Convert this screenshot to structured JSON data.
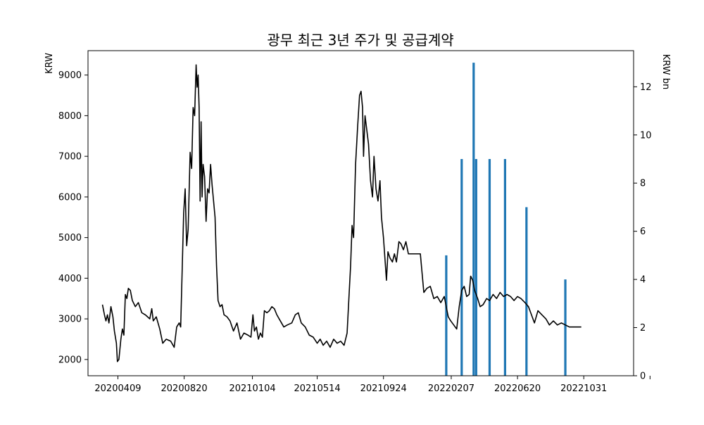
{
  "chart_data": {
    "type": "line+bar",
    "title": "광무 최근 3년 주가 및 공급계약",
    "ylabel_left": "KRW",
    "ylabel_right": "KRW bn",
    "x_tick_labels": [
      "20200409",
      "20200820",
      "20210104",
      "20210514",
      "20210924",
      "20220207",
      "20220620",
      "20221031"
    ],
    "y_left_ticks": [
      "2000",
      "3000",
      "4000",
      "5000",
      "6000",
      "7000",
      "8000",
      "9000"
    ],
    "y_right_ticks": [
      "0",
      "2",
      "4",
      "6",
      "8",
      "10",
      "12"
    ],
    "x_range": [
      "2020-02-09",
      "2023-02-08"
    ],
    "y_left_range": [
      1600,
      9600
    ],
    "y_right_range": [
      0,
      13.5
    ],
    "grid": false,
    "colors": {
      "line": "#000000",
      "bar": "#1f77b4"
    },
    "price_series": {
      "name": "",
      "points": [
        [
          "2020-03-09",
          3350
        ],
        [
          "2020-03-13",
          3100
        ],
        [
          "2020-03-16",
          2950
        ],
        [
          "2020-03-19",
          3100
        ],
        [
          "2020-03-22",
          2900
        ],
        [
          "2020-03-26",
          3300
        ],
        [
          "2020-03-30",
          3050
        ],
        [
          "2020-04-02",
          2700
        ],
        [
          "2020-04-06",
          2400
        ],
        [
          "2020-04-08",
          1950
        ],
        [
          "2020-04-11",
          2000
        ],
        [
          "2020-04-15",
          2500
        ],
        [
          "2020-04-18",
          2750
        ],
        [
          "2020-04-21",
          2600
        ],
        [
          "2020-04-24",
          3600
        ],
        [
          "2020-04-27",
          3500
        ],
        [
          "2020-04-30",
          3750
        ],
        [
          "2020-05-04",
          3700
        ],
        [
          "2020-05-08",
          3450
        ],
        [
          "2020-05-14",
          3300
        ],
        [
          "2020-05-20",
          3400
        ],
        [
          "2020-05-27",
          3150
        ],
        [
          "2020-06-03",
          3100
        ],
        [
          "2020-06-12",
          3000
        ],
        [
          "2020-06-16",
          3250
        ],
        [
          "2020-06-19",
          2950
        ],
        [
          "2020-06-25",
          3050
        ],
        [
          "2020-07-02",
          2750
        ],
        [
          "2020-07-08",
          2400
        ],
        [
          "2020-07-15",
          2500
        ],
        [
          "2020-07-24",
          2450
        ],
        [
          "2020-07-31",
          2300
        ],
        [
          "2020-08-05",
          2800
        ],
        [
          "2020-08-10",
          2900
        ],
        [
          "2020-08-13",
          2800
        ],
        [
          "2020-08-16",
          4200
        ],
        [
          "2020-08-19",
          5600
        ],
        [
          "2020-08-22",
          6200
        ],
        [
          "2020-08-25",
          4800
        ],
        [
          "2020-08-28",
          5200
        ],
        [
          "2020-09-01",
          7100
        ],
        [
          "2020-09-04",
          6700
        ],
        [
          "2020-09-07",
          8200
        ],
        [
          "2020-09-10",
          8000
        ],
        [
          "2020-09-13",
          9250
        ],
        [
          "2020-09-15",
          8700
        ],
        [
          "2020-09-17",
          9000
        ],
        [
          "2020-09-19",
          8200
        ],
        [
          "2020-09-21",
          5900
        ],
        [
          "2020-09-23",
          7850
        ],
        [
          "2020-09-25",
          6000
        ],
        [
          "2020-09-27",
          6800
        ],
        [
          "2020-09-30",
          6500
        ],
        [
          "2020-10-03",
          5400
        ],
        [
          "2020-10-06",
          6200
        ],
        [
          "2020-10-09",
          6100
        ],
        [
          "2020-10-12",
          6800
        ],
        [
          "2020-10-15",
          6300
        ],
        [
          "2020-10-18",
          5900
        ],
        [
          "2020-10-21",
          5500
        ],
        [
          "2020-10-24",
          4300
        ],
        [
          "2020-10-27",
          3450
        ],
        [
          "2020-10-31",
          3300
        ],
        [
          "2020-11-04",
          3350
        ],
        [
          "2020-11-08",
          3100
        ],
        [
          "2020-11-14",
          3050
        ],
        [
          "2020-11-20",
          2950
        ],
        [
          "2020-11-27",
          2700
        ],
        [
          "2020-12-04",
          2900
        ],
        [
          "2020-12-11",
          2500
        ],
        [
          "2020-12-18",
          2650
        ],
        [
          "2020-12-26",
          2600
        ],
        [
          "2021-01-01",
          2550
        ],
        [
          "2021-01-05",
          3100
        ],
        [
          "2021-01-08",
          2700
        ],
        [
          "2021-01-12",
          2800
        ],
        [
          "2021-01-16",
          2500
        ],
        [
          "2021-01-20",
          2650
        ],
        [
          "2021-01-24",
          2550
        ],
        [
          "2021-01-28",
          3200
        ],
        [
          "2021-02-02",
          3150
        ],
        [
          "2021-02-07",
          3200
        ],
        [
          "2021-02-12",
          3300
        ],
        [
          "2021-02-17",
          3250
        ],
        [
          "2021-02-22",
          3100
        ],
        [
          "2021-03-01",
          2950
        ],
        [
          "2021-03-08",
          2800
        ],
        [
          "2021-03-15",
          2850
        ],
        [
          "2021-03-24",
          2900
        ],
        [
          "2021-03-31",
          3100
        ],
        [
          "2021-04-06",
          3150
        ],
        [
          "2021-04-12",
          2900
        ],
        [
          "2021-04-20",
          2800
        ],
        [
          "2021-04-28",
          2600
        ],
        [
          "2021-05-06",
          2550
        ],
        [
          "2021-05-14",
          2400
        ],
        [
          "2021-05-20",
          2500
        ],
        [
          "2021-05-26",
          2350
        ],
        [
          "2021-06-02",
          2450
        ],
        [
          "2021-06-09",
          2300
        ],
        [
          "2021-06-16",
          2500
        ],
        [
          "2021-06-23",
          2400
        ],
        [
          "2021-06-30",
          2450
        ],
        [
          "2021-07-07",
          2350
        ],
        [
          "2021-07-13",
          2650
        ],
        [
          "2021-07-17",
          3600
        ],
        [
          "2021-07-20",
          4300
        ],
        [
          "2021-07-23",
          5300
        ],
        [
          "2021-07-26",
          5000
        ],
        [
          "2021-07-30",
          6800
        ],
        [
          "2021-08-03",
          7700
        ],
        [
          "2021-08-07",
          8500
        ],
        [
          "2021-08-10",
          8600
        ],
        [
          "2021-08-13",
          8200
        ],
        [
          "2021-08-15",
          7000
        ],
        [
          "2021-08-18",
          8000
        ],
        [
          "2021-08-21",
          7700
        ],
        [
          "2021-08-25",
          7300
        ],
        [
          "2021-08-29",
          6400
        ],
        [
          "2021-09-02",
          6000
        ],
        [
          "2021-09-05",
          7000
        ],
        [
          "2021-09-09",
          6200
        ],
        [
          "2021-09-13",
          5900
        ],
        [
          "2021-09-17",
          6400
        ],
        [
          "2021-09-20",
          5500
        ],
        [
          "2021-09-24",
          5000
        ],
        [
          "2021-09-28",
          4300
        ],
        [
          "2021-09-30",
          3950
        ],
        [
          "2021-10-03",
          4650
        ],
        [
          "2021-10-07",
          4500
        ],
        [
          "2021-10-12",
          4400
        ],
        [
          "2021-10-16",
          4600
        ],
        [
          "2021-10-20",
          4400
        ],
        [
          "2021-10-25",
          4900
        ],
        [
          "2021-10-29",
          4850
        ],
        [
          "2021-11-03",
          4700
        ],
        [
          "2021-11-08",
          4900
        ],
        [
          "2021-11-13",
          4600
        ],
        [
          "2021-11-20",
          4600
        ],
        [
          "2021-12-01",
          4600
        ],
        [
          "2021-12-07",
          4600
        ],
        [
          "2021-12-14",
          3650
        ],
        [
          "2021-12-20",
          3750
        ],
        [
          "2021-12-27",
          3800
        ],
        [
          "2022-01-03",
          3500
        ],
        [
          "2022-01-10",
          3550
        ],
        [
          "2022-01-17",
          3400
        ],
        [
          "2022-01-24",
          3550
        ],
        [
          "2022-02-01",
          3050
        ],
        [
          "2022-02-06",
          2950
        ],
        [
          "2022-02-12",
          2850
        ],
        [
          "2022-02-18",
          2750
        ],
        [
          "2022-02-23",
          3300
        ],
        [
          "2022-02-28",
          3700
        ],
        [
          "2022-03-05",
          3800
        ],
        [
          "2022-03-10",
          3550
        ],
        [
          "2022-03-15",
          3600
        ],
        [
          "2022-03-18",
          4050
        ],
        [
          "2022-03-22",
          3950
        ],
        [
          "2022-03-26",
          3700
        ],
        [
          "2022-04-01",
          3500
        ],
        [
          "2022-04-06",
          3300
        ],
        [
          "2022-04-12",
          3350
        ],
        [
          "2022-04-19",
          3500
        ],
        [
          "2022-04-25",
          3450
        ],
        [
          "2022-05-02",
          3600
        ],
        [
          "2022-05-09",
          3500
        ],
        [
          "2022-05-16",
          3650
        ],
        [
          "2022-05-23",
          3550
        ],
        [
          "2022-05-30",
          3600
        ],
        [
          "2022-06-06",
          3550
        ],
        [
          "2022-06-13",
          3450
        ],
        [
          "2022-06-20",
          3550
        ],
        [
          "2022-06-27",
          3500
        ],
        [
          "2022-07-05",
          3400
        ],
        [
          "2022-07-12",
          3300
        ],
        [
          "2022-07-18",
          3100
        ],
        [
          "2022-07-24",
          2900
        ],
        [
          "2022-07-31",
          3200
        ],
        [
          "2022-08-08",
          3100
        ],
        [
          "2022-08-16",
          3000
        ],
        [
          "2022-08-23",
          2850
        ],
        [
          "2022-08-31",
          2950
        ],
        [
          "2022-09-08",
          2850
        ],
        [
          "2022-09-16",
          2900
        ],
        [
          "2022-09-24",
          2850
        ],
        [
          "2022-10-02",
          2800
        ],
        [
          "2022-10-10",
          2800
        ],
        [
          "2022-10-18",
          2800
        ],
        [
          "2022-10-26",
          2800
        ]
      ]
    },
    "contract_series": {
      "name": "",
      "bars": [
        [
          "2022-01-28",
          5
        ],
        [
          "2022-02-28",
          9
        ],
        [
          "2022-03-24",
          13
        ],
        [
          "2022-03-29",
          9
        ],
        [
          "2022-04-25",
          9
        ],
        [
          "2022-05-26",
          9
        ],
        [
          "2022-07-08",
          7
        ],
        [
          "2022-09-24",
          4
        ]
      ]
    }
  }
}
